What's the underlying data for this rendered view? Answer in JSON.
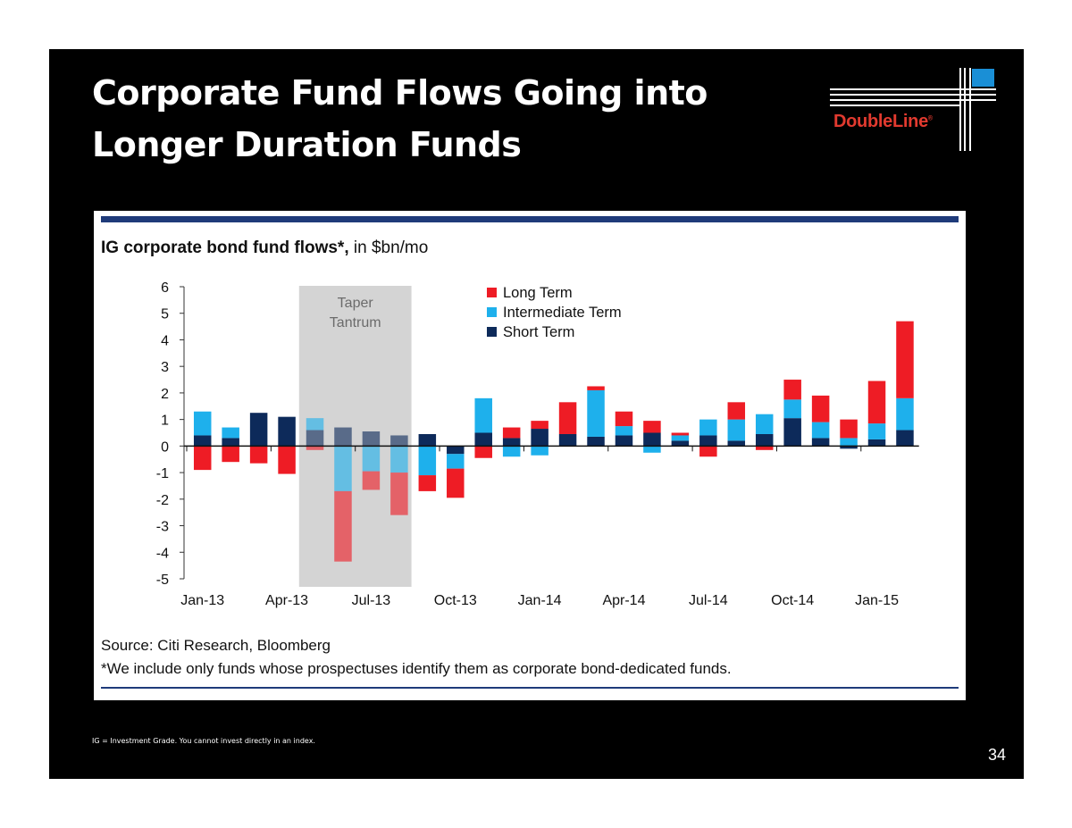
{
  "slide": {
    "title_line1": "Corporate Fund Flows Going into",
    "title_line2": "Longer Duration Funds",
    "logo_text": "DoubleLine",
    "logo_mark": "®",
    "footnote": "IG = Investment Grade. You cannot invest directly in an index.",
    "page_number": "34"
  },
  "colors": {
    "long": "#ee1c25",
    "intermediate": "#1eb0ec",
    "short": "#0d2a5a",
    "shade": "#d4d4d4",
    "rule": "#1f3b7a",
    "logo_red": "#e23a2f",
    "logo_blue": "#1a8fd6"
  },
  "chart_data": {
    "type": "bar",
    "stacked": true,
    "title_bold": "IG corporate bond fund flows*,",
    "title_rest": " in $bn/mo",
    "ylim": [
      -5,
      6
    ],
    "yticks": [
      6,
      5,
      4,
      3,
      2,
      1,
      0,
      -1,
      -2,
      -3,
      -4,
      -5
    ],
    "categories": [
      "Jan-13",
      "Feb-13",
      "Mar-13",
      "Apr-13",
      "May-13",
      "Jun-13",
      "Jul-13",
      "Aug-13",
      "Sep-13",
      "Oct-13",
      "Nov-13",
      "Dec-13",
      "Jan-14",
      "Feb-14",
      "Mar-14",
      "Apr-14",
      "May-14",
      "Jun-14",
      "Jul-14",
      "Aug-14",
      "Sep-14",
      "Oct-14",
      "Nov-14",
      "Dec-14",
      "Jan-15",
      "Feb-15"
    ],
    "x_tick_labels": [
      "Jan-13",
      "Apr-13",
      "Jul-13",
      "Oct-13",
      "Jan-14",
      "Apr-14",
      "Jul-14",
      "Oct-14",
      "Jan-15"
    ],
    "series": [
      {
        "name": "Short Term",
        "values": [
          0.4,
          0.3,
          1.25,
          1.1,
          0.6,
          0.7,
          0.55,
          0.4,
          0.45,
          -0.3,
          0.5,
          0.3,
          0.65,
          0.45,
          0.35,
          0.4,
          0.5,
          0.2,
          0.4,
          0.2,
          0.45,
          1.05,
          0.3,
          -0.1,
          0.25,
          0.6
        ]
      },
      {
        "name": "Intermediate Term",
        "values": [
          0.9,
          0.4,
          0.0,
          0.0,
          0.45,
          -1.7,
          -0.95,
          -1.0,
          -1.1,
          -0.55,
          1.3,
          -0.4,
          -0.35,
          0.0,
          1.75,
          0.35,
          -0.25,
          0.2,
          0.6,
          0.8,
          0.75,
          0.7,
          0.6,
          0.3,
          0.6,
          1.2
        ]
      },
      {
        "name": "Long Term",
        "values": [
          -0.9,
          -0.6,
          -0.65,
          -1.05,
          -0.15,
          -2.65,
          -0.7,
          -1.6,
          -0.6,
          -1.1,
          -0.45,
          0.4,
          0.3,
          1.2,
          0.15,
          0.55,
          0.45,
          0.1,
          -0.4,
          0.65,
          -0.15,
          0.75,
          1.0,
          0.7,
          1.6,
          2.9
        ]
      }
    ],
    "shaded_region": {
      "label_line1": "Taper",
      "label_line2": "Tantrum",
      "from_category": "May-13",
      "to_category": "Aug-13"
    },
    "legend": [
      "Long Term",
      "Intermediate Term",
      "Short Term"
    ],
    "legend_placement": "top-center",
    "source": "Source: Citi Research, Bloomberg",
    "note": "*We include only funds whose prospectuses identify them as corporate bond-dedicated funds."
  }
}
